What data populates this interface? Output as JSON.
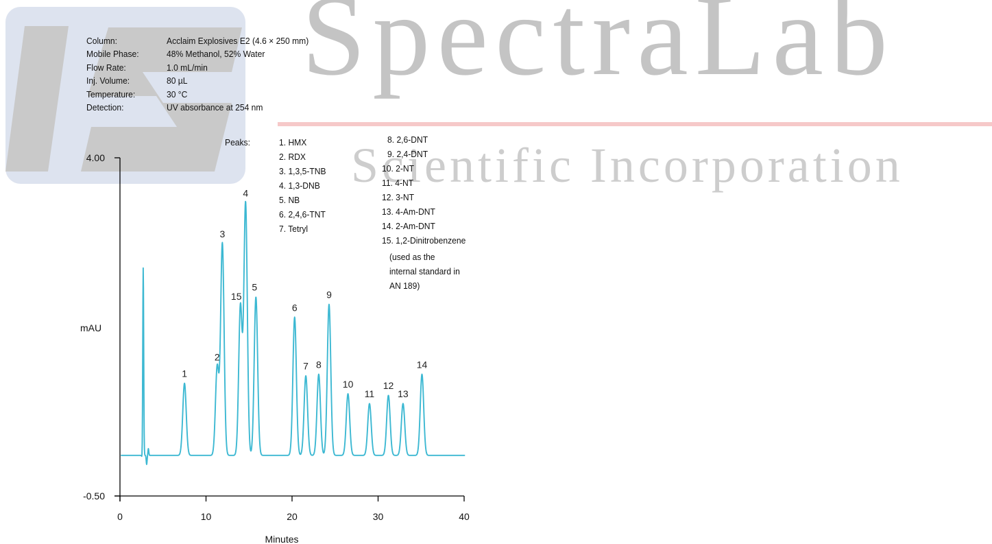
{
  "watermark": {
    "brand": "SpectraLab",
    "subtitle": "Scientific Incorporation",
    "logo_text": "LS",
    "logo_color": "#dde3ef",
    "logo_mark_color": "#c9c9c9",
    "accent_rule_color": "#f6c9c9"
  },
  "conditions": [
    {
      "label": "Column:",
      "value": "Acclaim Explosives E2 (4.6 × 250 mm)"
    },
    {
      "label": "Mobile Phase:",
      "value": "48% Methanol, 52% Water"
    },
    {
      "label": "Flow Rate:",
      "value": "1.0 mL/min"
    },
    {
      "label": "Inj. Volume:",
      "value": "80 µL"
    },
    {
      "label": "Temperature:",
      "value": "30 °C"
    },
    {
      "label": "Detection:",
      "value": "UV absorbance at 254 nm"
    }
  ],
  "peaks_legend": {
    "title": "Peaks:",
    "column1": [
      "1. HMX",
      "2. RDX",
      "3. 1,3,5-TNB",
      "4. 1,3-DNB",
      "5. NB",
      "6. 2,4,6-TNT",
      "7. Tetryl"
    ],
    "column2": [
      "8. 2,6-DNT",
      "9. 2,4-DNT",
      "10. 2-NT",
      "11. 4-NT",
      "12. 3-NT",
      "13. 4-Am-DNT",
      "14. 2-Am-DNT",
      "15. 1,2-Dinitrobenzene",
      "(used as the",
      "internal standard in",
      "AN 189)"
    ]
  },
  "chart_data": {
    "type": "line",
    "xlabel": "Minutes",
    "ylabel": "mAU",
    "xlim": [
      0,
      40
    ],
    "ylim": [
      -0.5,
      4.0
    ],
    "x_ticks": [
      0,
      10,
      20,
      30,
      40
    ],
    "y_ticks": [
      "4.00",
      "-0.50"
    ],
    "line_color": "#3cb8d2",
    "baseline": 0.04,
    "void_peak": {
      "x": 2.7,
      "y": 2.71
    },
    "peaks": [
      {
        "label": "1",
        "x": 7.5,
        "y": 1.0
      },
      {
        "label": "2",
        "x": 11.3,
        "y": 1.22
      },
      {
        "label": "3",
        "x": 11.9,
        "y": 2.86
      },
      {
        "label": "15",
        "x": 14.0,
        "y": 2.03
      },
      {
        "label": "4",
        "x": 14.6,
        "y": 3.4
      },
      {
        "label": "5",
        "x": 15.8,
        "y": 2.15
      },
      {
        "label": "6",
        "x": 20.3,
        "y": 1.88
      },
      {
        "label": "7",
        "x": 21.6,
        "y": 1.1
      },
      {
        "label": "8",
        "x": 23.1,
        "y": 1.12
      },
      {
        "label": "9",
        "x": 24.3,
        "y": 2.05
      },
      {
        "label": "10",
        "x": 26.5,
        "y": 0.86
      },
      {
        "label": "11",
        "x": 29.0,
        "y": 0.73
      },
      {
        "label": "12",
        "x": 31.2,
        "y": 0.84
      },
      {
        "label": "13",
        "x": 32.9,
        "y": 0.73
      },
      {
        "label": "14",
        "x": 35.1,
        "y": 1.12
      }
    ]
  }
}
